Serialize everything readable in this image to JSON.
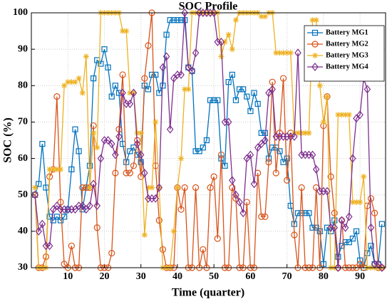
{
  "chart_data": {
    "type": "line",
    "title": "SOC Profile",
    "x_label": "Time (quarter)",
    "y_label": "SOC (%)",
    "x": [
      1,
      2,
      3,
      4,
      5,
      6,
      7,
      8,
      9,
      10,
      11,
      12,
      13,
      14,
      15,
      16,
      17,
      18,
      19,
      20,
      21,
      22,
      23,
      24,
      25,
      26,
      27,
      28,
      29,
      30,
      31,
      32,
      33,
      34,
      35,
      36,
      37,
      38,
      39,
      40,
      41,
      42,
      43,
      44,
      45,
      46,
      47,
      48,
      49,
      50,
      51,
      52,
      53,
      54,
      55,
      56,
      57,
      58,
      59,
      60,
      61,
      62,
      63,
      64,
      65,
      66,
      67,
      68,
      69,
      70,
      71,
      72,
      73,
      74,
      75,
      76,
      77,
      78,
      79,
      80,
      81,
      82,
      83,
      84,
      85,
      86,
      87,
      88,
      89,
      90,
      91,
      92,
      93,
      94,
      95,
      96
    ],
    "series": [
      {
        "name": "Battery MG1",
        "color": "#0072bd",
        "marker": "square",
        "values": [
          50,
          53,
          64,
          52,
          44,
          43,
          44,
          43,
          44,
          46,
          57,
          68,
          62,
          46,
          52,
          58,
          82,
          87,
          86,
          90,
          85,
          77,
          80,
          78,
          64,
          59,
          62,
          63,
          61,
          59,
          80,
          79,
          83,
          83,
          78,
          80,
          94,
          98,
          98,
          98,
          98,
          98,
          85,
          84,
          62,
          62,
          63,
          65,
          76,
          76,
          76,
          60,
          58,
          81,
          83,
          76,
          79,
          79,
          77,
          73,
          78,
          75,
          67,
          67,
          60,
          63,
          63,
          62,
          59,
          60,
          47,
          42,
          45,
          45,
          45,
          45,
          41,
          41,
          40,
          31,
          41,
          40,
          43,
          33,
          36,
          37,
          37,
          38,
          40,
          32,
          30,
          34,
          36,
          31,
          31,
          42
        ]
      },
      {
        "name": "Battery MG2",
        "color": "#d95319",
        "marker": "circle",
        "values": [
          50,
          30,
          30,
          33,
          55,
          57,
          77,
          48,
          31,
          30,
          36,
          30,
          30,
          52,
          52,
          52,
          69,
          41,
          30,
          30,
          30,
          34,
          56,
          68,
          83,
          56,
          56,
          58,
          65,
          55,
          82,
          91,
          100,
          58,
          43,
          35,
          30,
          30,
          30,
          52,
          46,
          52,
          30,
          30,
          52,
          30,
          35,
          30,
          52,
          55,
          38,
          61,
          30,
          30,
          52,
          49,
          30,
          30,
          48,
          30,
          30,
          56,
          44,
          44,
          59,
          81,
          56,
          67,
          82,
          54,
          67,
          39,
          30,
          52,
          30,
          30,
          30,
          52,
          30,
          69,
          77,
          55,
          45,
          30,
          43,
          30,
          30,
          30,
          30,
          31,
          30,
          47,
          49,
          45,
          30,
          30
        ]
      },
      {
        "name": "Battery MG3",
        "color": "#edb120",
        "marker": "star",
        "values": [
          52,
          30,
          30,
          30,
          57,
          57,
          57,
          57,
          80,
          81,
          81,
          81,
          82,
          78,
          88,
          52,
          67,
          63,
          100,
          100,
          100,
          100,
          100,
          100,
          95,
          95,
          78,
          78,
          67,
          67,
          39,
          52,
          52,
          70,
          52,
          30,
          30,
          30,
          40,
          52,
          60,
          79,
          79,
          100,
          100,
          100,
          100,
          100,
          100,
          100,
          100,
          88,
          92,
          94,
          90,
          98,
          100,
          100,
          100,
          100,
          100,
          100,
          99,
          99,
          100,
          100,
          89,
          89,
          89,
          89,
          89,
          67,
          67,
          67,
          67,
          67,
          98,
          98,
          80,
          70,
          77,
          30,
          30,
          72,
          72,
          72,
          72,
          48,
          48,
          48,
          55,
          30,
          30,
          30,
          30,
          30
        ]
      },
      {
        "name": "Battery MG4",
        "color": "#7e2f8e",
        "marker": "diamond",
        "values": [
          50,
          40,
          42,
          36,
          36,
          46,
          47,
          46,
          46,
          46,
          46,
          46,
          47,
          47,
          46,
          47,
          53,
          47,
          60,
          65,
          65,
          64,
          61,
          66,
          78,
          75,
          75,
          78,
          64,
          61,
          56,
          49,
          49,
          49,
          52,
          85,
          88,
          68,
          82,
          83,
          83,
          100,
          85,
          84,
          89,
          100,
          100,
          100,
          100,
          100,
          92,
          92,
          70,
          70,
          54,
          50,
          48,
          45,
          60,
          61,
          53,
          63,
          64,
          65,
          78,
          79,
          66,
          66,
          66,
          66,
          66,
          66,
          89,
          61,
          61,
          61,
          61,
          57,
          51,
          51,
          51,
          41,
          41,
          30,
          43,
          41,
          44,
          60,
          71,
          72,
          82,
          79,
          41,
          31,
          31,
          30
        ]
      }
    ],
    "xlim": [
      0,
      97
    ],
    "xticks": [
      10,
      20,
      30,
      40,
      50,
      60,
      70,
      80,
      90
    ],
    "ylim": [
      30,
      100
    ],
    "yticks": [
      30,
      40,
      50,
      60,
      70,
      80,
      90,
      100
    ],
    "grid": true,
    "legend": "upper right"
  }
}
